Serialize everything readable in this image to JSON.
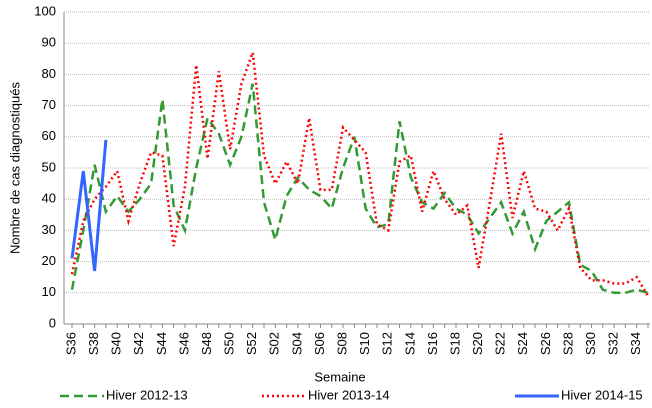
{
  "chart_data": {
    "type": "line",
    "x_label": "Semaine",
    "y_label": "Nombre de cas diagnostiqués",
    "categories": [
      "S36",
      null,
      "S38",
      null,
      "S40",
      null,
      "S42",
      null,
      "S44",
      null,
      "S46",
      null,
      "S48",
      null,
      "S50",
      null,
      "S52",
      null,
      "S02",
      null,
      "S04",
      null,
      "S06",
      null,
      "S08",
      null,
      "S10",
      null,
      "S12",
      null,
      "S14",
      null,
      "S16",
      null,
      "S18",
      null,
      "S20",
      null,
      "S22",
      null,
      "S24",
      null,
      "S26",
      null,
      "S28",
      null,
      "S30",
      null,
      "S32",
      null,
      "S34",
      null
    ],
    "ylim": [
      0,
      100
    ],
    "yticks": [
      0,
      10,
      20,
      30,
      40,
      50,
      60,
      70,
      80,
      90,
      100
    ],
    "grid": true,
    "legend": "bottom",
    "series": [
      {
        "name": "Hiver 2012-13",
        "color": "#339933",
        "style": "dashed",
        "values": [
          11,
          30,
          51,
          36,
          41,
          36,
          40,
          45,
          72,
          38,
          30,
          50,
          66,
          61,
          51,
          60,
          77,
          39,
          27,
          41,
          47,
          43,
          41,
          37,
          50,
          60,
          37,
          31,
          32,
          65,
          47,
          39,
          37,
          42,
          37,
          35,
          29,
          34,
          39,
          29,
          36,
          24,
          33,
          36,
          39,
          19,
          17,
          11,
          10,
          10,
          11,
          10
        ]
      },
      {
        "name": "Hiver 2013-14",
        "color": "#ff0000",
        "style": "dotted",
        "values": [
          16,
          33,
          40,
          44,
          49,
          33,
          45,
          55,
          54,
          25,
          44,
          83,
          53,
          81,
          56,
          77,
          87,
          54,
          45,
          52,
          45,
          66,
          43,
          43,
          63,
          59,
          55,
          32,
          30,
          52,
          54,
          36,
          49,
          40,
          35,
          38,
          18,
          39,
          61,
          34,
          49,
          37,
          36,
          30,
          37,
          18,
          14,
          14,
          13,
          13,
          15,
          9
        ]
      },
      {
        "name": "Hiver 2014-15",
        "color": "#3366ff",
        "style": "solid",
        "values": [
          21,
          49,
          17,
          59,
          null,
          null,
          null,
          null,
          null,
          null,
          null,
          null,
          null,
          null,
          null,
          null,
          null,
          null,
          null,
          null,
          null,
          null,
          null,
          null,
          null,
          null,
          null,
          null,
          null,
          null,
          null,
          null,
          null,
          null,
          null,
          null,
          null,
          null,
          null,
          null,
          null,
          null,
          null,
          null,
          null,
          null,
          null,
          null,
          null,
          null,
          null,
          null
        ]
      }
    ]
  }
}
